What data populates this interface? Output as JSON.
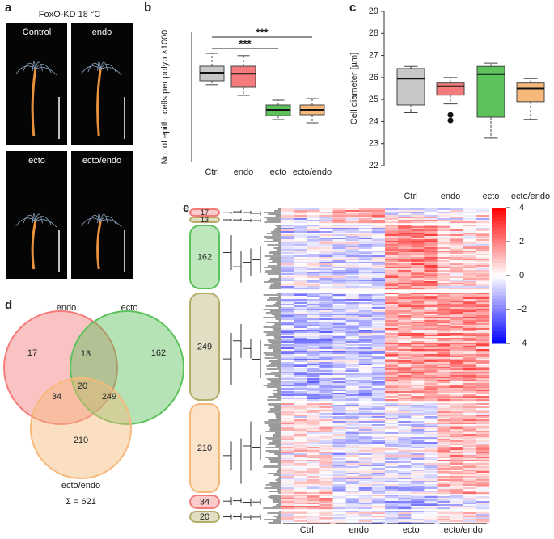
{
  "photos": {
    "label": "a",
    "title": "FoxO-KD 18 °C",
    "images": [
      "Control",
      "endo",
      "ecto",
      "ecto/endo"
    ]
  },
  "chart_data": [
    {
      "type": "box",
      "label": "b",
      "y_label": "No. of epith. cells per polyp ×1000",
      "categories": [
        "Ctrl",
        "endo",
        "ecto",
        "ecto/endo"
      ],
      "colors": [
        "#c8c8c8",
        "#f47b7b",
        "#5cc25c",
        "#f6b87b"
      ],
      "boxes": [
        {
          "whisker_low": 13.9,
          "q1": 14.5,
          "median": 15.75,
          "q3": 16.75,
          "whisker_high": 18.75,
          "outliers": []
        },
        {
          "whisker_low": 12.25,
          "q1": 13.5,
          "median": 15.6,
          "q3": 16.75,
          "whisker_high": 18.4,
          "outliers": []
        },
        {
          "whisker_low": 8.5,
          "q1": 9.1,
          "median": 10,
          "q3": 10.75,
          "whisker_high": 11.5,
          "outliers": []
        },
        {
          "whisker_low": 8,
          "q1": 9.25,
          "median": 10,
          "q3": 10.75,
          "whisker_high": 11.75,
          "outliers": []
        }
      ],
      "ylim": [
        2,
        22
      ],
      "significance": [
        {
          "from": 0,
          "to": 3,
          "label": "***"
        },
        {
          "from": 0,
          "to": 2,
          "label": "***"
        }
      ]
    },
    {
      "type": "box",
      "label": "c",
      "y_label": "Cell diameter [µm]",
      "categories": [
        "Ctrl",
        "endo",
        "ecto",
        "ecto/endo"
      ],
      "colors": [
        "#c8c8c8",
        "#f47b7b",
        "#5cc25c",
        "#f6b87b"
      ],
      "boxes": [
        {
          "whisker_low": 24.4,
          "q1": 24.75,
          "median": 25.95,
          "q3": 26.4,
          "whisker_high": 26.5,
          "outliers": []
        },
        {
          "whisker_low": 24.8,
          "q1": 25.2,
          "median": 25.6,
          "q3": 25.75,
          "whisker_high": 26.0,
          "outliers": [
            24.3,
            24.05
          ]
        },
        {
          "whisker_low": 23.25,
          "q1": 24.2,
          "median": 26.15,
          "q3": 26.5,
          "whisker_high": 26.65,
          "outliers": []
        },
        {
          "whisker_low": 24.1,
          "q1": 24.9,
          "median": 25.5,
          "q3": 25.75,
          "whisker_high": 25.95,
          "outliers": []
        }
      ],
      "ylim": [
        22,
        29
      ],
      "yticks": [
        22,
        23,
        24,
        25,
        26,
        27,
        28,
        29
      ]
    }
  ],
  "venn": {
    "label": "d",
    "sets": [
      {
        "name": "endo",
        "color": "#f47b7b"
      },
      {
        "name": "ecto",
        "color": "#5cc25c"
      },
      {
        "name": "ecto/endo",
        "color": "#f6b87b"
      }
    ],
    "regions": [
      17,
      13,
      162,
      34,
      20,
      249,
      210
    ],
    "total": "Σ = 621"
  },
  "heatmap": {
    "label": "e",
    "clusters": [
      17,
      13,
      162,
      249,
      210,
      34,
      20
    ],
    "cluster_colors": [
      "#f47b7b",
      "#b5ad6a",
      "#5cc25c",
      "#b5ad6a",
      "#f6b87b",
      "#f47b7b",
      "#b5ad6a"
    ],
    "colorbar_lim": [
      -4,
      4
    ],
    "colorbar_ticks": [
      4,
      2,
      0,
      {
        "value": -2,
        "label": "−2"
      },
      {
        "value": -4,
        "label": "−4"
      }
    ],
    "groups": [
      "Ctrl",
      "endo",
      "ecto",
      "ecto/endo"
    ]
  }
}
